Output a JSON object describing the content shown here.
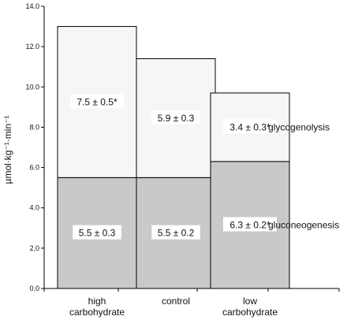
{
  "chart_data": {
    "type": "bar",
    "stacked": true,
    "categories": [
      "high carbohydrate",
      "control",
      "low carbohydrate"
    ],
    "category_lines": [
      [
        "high",
        "carbohydrate"
      ],
      [
        "control"
      ],
      [
        "low",
        "carbohydrate"
      ]
    ],
    "series": [
      {
        "name": "gluconeogenesis",
        "values": [
          5.5,
          5.5,
          6.3
        ],
        "labels": [
          "5.5 ± 0.3",
          "5.5 ± 0.2",
          "6.3 ± 0.2*"
        ],
        "color": "#c9c9c9"
      },
      {
        "name": "glycogenolysis",
        "values": [
          7.5,
          5.9,
          3.4
        ],
        "labels": [
          "7.5 ± 0.5*",
          "5.9 ± 0.3",
          "3.4 ± 0.3*"
        ],
        "color": "#f6f6f6"
      }
    ],
    "ylabel": "µmol·kg⁻¹·min⁻¹",
    "ylim": [
      0,
      14
    ],
    "yticks": [
      "0.0",
      "2.0",
      "4.0",
      "6.0",
      "8.0",
      "10.0",
      "12.0",
      "14.0"
    ],
    "grid": false,
    "legend": "series labels at right of bars"
  }
}
